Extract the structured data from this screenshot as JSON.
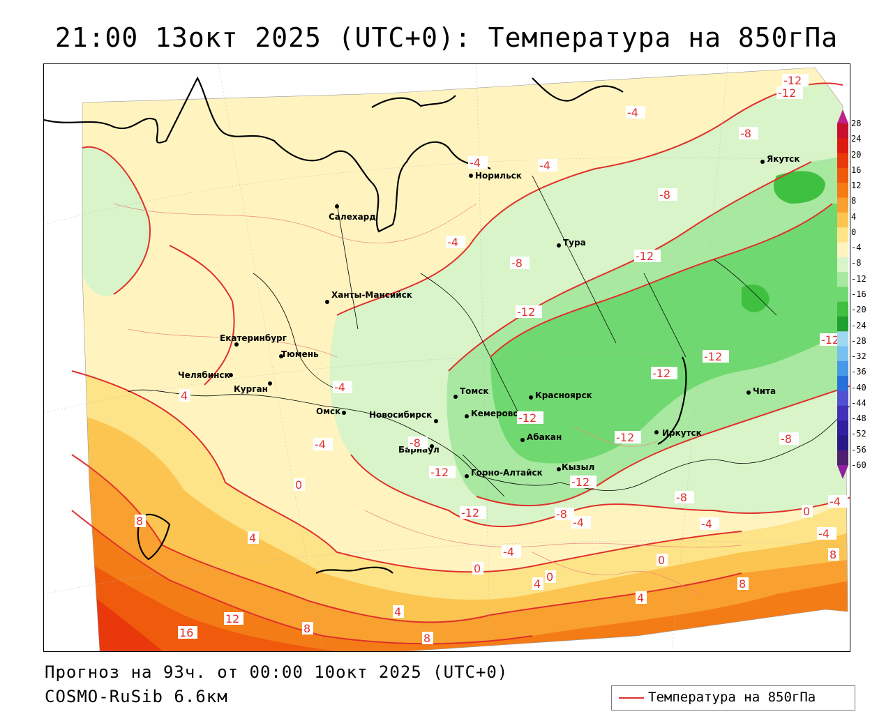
{
  "header": {
    "title": "21:00 13окт 2025 (UTC+0): Температура на 850гПа"
  },
  "footer": {
    "forecast": "Прогноз на 93ч. от 00:00 10окт 2025 (UTC+0)",
    "model": "COSMO-RuSib 6.6км"
  },
  "legend": {
    "label": "Температура на 850гПа",
    "line_color": "#e0302c"
  },
  "colorbar": {
    "ticks": [
      "28",
      "24",
      "20",
      "16",
      "12",
      "8",
      "4",
      "0",
      "-4",
      "-8",
      "-12",
      "-16",
      "-20",
      "-24",
      "-28",
      "-32",
      "-36",
      "-40",
      "-44",
      "-48",
      "-52",
      "-56",
      "-60"
    ],
    "colors": [
      "#c8102e",
      "#dc1a10",
      "#e8380c",
      "#f05a0c",
      "#f47c16",
      "#f8a030",
      "#fcc450",
      "#fde488",
      "#fff4c0",
      "#d8f4c8",
      "#a8e8a0",
      "#70d870",
      "#40c040",
      "#20a030",
      "#a0d8f0",
      "#78c0f0",
      "#4898e8",
      "#2870d8",
      "#5050d0",
      "#4030b8",
      "#3020a0",
      "#281888",
      "#502070"
    ]
  },
  "cities": [
    {
      "name": "Норильск"
    },
    {
      "name": "Салехард"
    },
    {
      "name": "Якутск"
    },
    {
      "name": "Тура"
    },
    {
      "name": "Ханты-Мансийск"
    },
    {
      "name": "Екатеринбург"
    },
    {
      "name": "Тюмень"
    },
    {
      "name": "Челябинск"
    },
    {
      "name": "Курган"
    },
    {
      "name": "Омск"
    },
    {
      "name": "Новосибирск"
    },
    {
      "name": "Томск"
    },
    {
      "name": "Красноярск"
    },
    {
      "name": "Кемерово"
    },
    {
      "name": "Абакан"
    },
    {
      "name": "Барнаул"
    },
    {
      "name": "Горно-Алтайск"
    },
    {
      "name": "Кызыл"
    },
    {
      "name": "Иркутск"
    },
    {
      "name": "Чита"
    }
  ],
  "contour_labels": [
    "-12",
    "-12",
    "-4",
    "-8",
    "-4",
    "-4",
    "-8",
    "-4",
    "-8",
    "-12",
    "-12",
    "-12",
    "-12",
    "-12",
    "-12",
    "-4",
    "-12",
    "-8",
    "-12",
    "-12",
    "-12",
    "-8",
    "-8",
    "-4",
    "-4",
    "-4",
    "0",
    "0",
    "0",
    "0",
    "4",
    "4",
    "4",
    "4",
    "8",
    "8",
    "8",
    "8",
    "8",
    "12",
    "16",
    "-4",
    "-8",
    "-4",
    "0",
    "-4",
    "4"
  ]
}
